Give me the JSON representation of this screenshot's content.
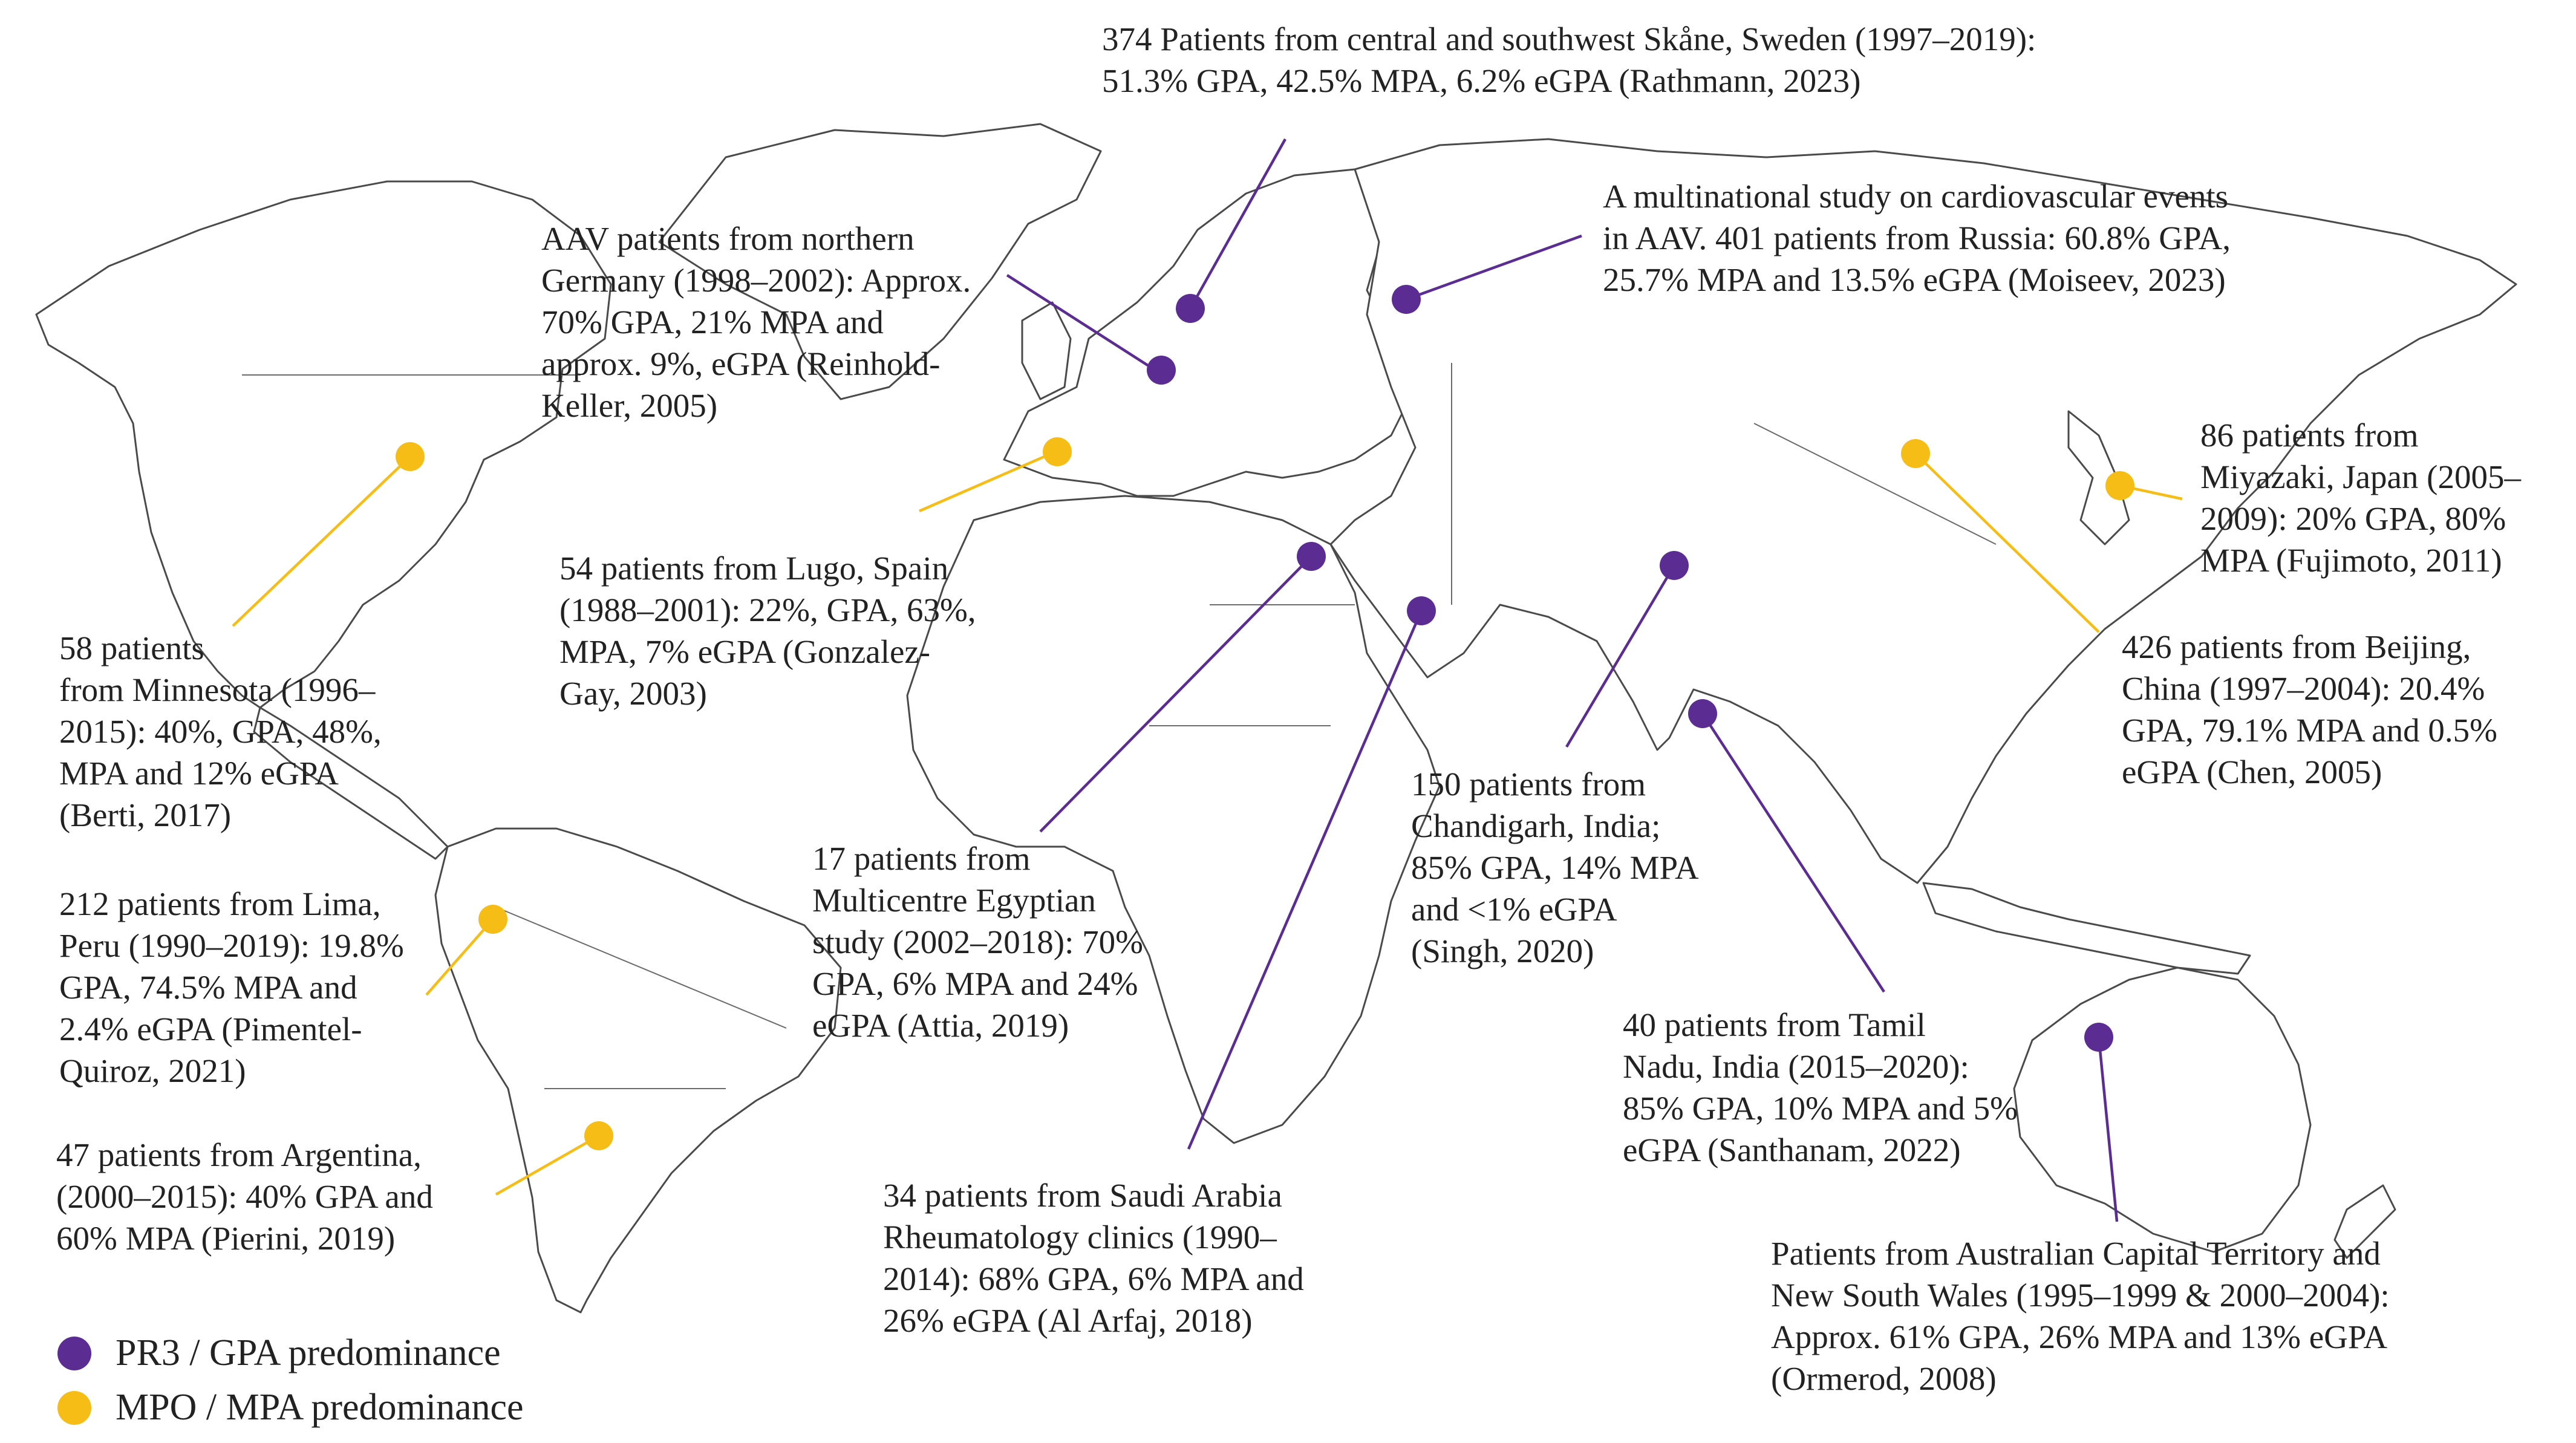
{
  "colors": {
    "gpa": "#5b2c91",
    "mpa": "#f6bd16"
  },
  "legend": {
    "gpa_label": "PR3 / GPA predominance",
    "mpa_label": "MPO / MPA predominance"
  },
  "annotations": {
    "sweden": [
      "374 Patients from central and southwest Skåne, Sweden  (1997–2019):",
      "51.3% GPA,  42.5% MPA,  6.2% eGPA (Rathmann, 2023)"
    ],
    "russia": [
      "A multinational study on cardiovascular events",
      "in AAV. 401 patients from Russia: 60.8% GPA,",
      "25.7% MPA and 13.5% eGPA (Moiseev,  2023)"
    ],
    "germany": [
      "AAV patients from northern",
      "Germany (1998–2002): Approx.",
      "70% GPA, 21% MPA and",
      "approx. 9%, eGPA (Reinhold-",
      "Keller, 2005)"
    ],
    "japan": [
      "86 patients from",
      "Miyazaki, Japan (2005–",
      "2009): 20% GPA, 80%",
      "MPA (Fujimoto, 2011)"
    ],
    "spain": [
      "54 patients from Lugo, Spain",
      "(1988–2001): 22%, GPA, 63%,",
      "MPA, 7% eGPA (Gonzalez-",
      "Gay, 2003)"
    ],
    "china": [
      "426 patients from Beijing,",
      "China (1997–2004): 20.4%",
      "GPA, 79.1% MPA and 0.5%",
      "eGPA (Chen, 2005)"
    ],
    "minnesota": [
      "58 patients",
      "from Minnesota (1996–",
      "2015): 40%, GPA, 48%,",
      "MPA and 12% eGPA",
      "(Berti, 2017)"
    ],
    "chandigarh": [
      "150 patients from",
      "Chandigarh, India;",
      "85% GPA, 14% MPA",
      "and <1% eGPA",
      "(Singh, 2020)"
    ],
    "egypt": [
      "17 patients from",
      "Multicentre Egyptian",
      "study (2002–2018): 70%",
      "GPA, 6% MPA and 24%",
      "eGPA (Attia, 2019)"
    ],
    "peru": [
      "212 patients from Lima,",
      "Peru  (1990–2019): 19.8%",
      "GPA, 74.5% MPA and",
      "2.4% eGPA (Pimentel-",
      "Quiroz, 2021)"
    ],
    "tamil": [
      "40 patients from Tamil",
      "Nadu, India (2015–2020):",
      "85% GPA, 10% MPA and 5%",
      "eGPA (Santhanam, 2022)"
    ],
    "argentina": [
      "47 patients from Argentina,",
      "(2000–2015): 40% GPA and",
      "60% MPA (Pierini, 2019)"
    ],
    "saudi": [
      "34 patients from Saudi Arabia",
      "Rheumatology  clinics (1990–",
      "2014): 68% GPA, 6% MPA and",
      "26% eGPA (Al Arfaj, 2018)"
    ],
    "australia": [
      "Patients from Australian Capital Territory and",
      "New South Wales (1995–1999 & 2000–2004):",
      "Approx. 61% GPA, 26% MPA and 13% eGPA",
      "(Ormerod, 2008)"
    ]
  },
  "markers": [
    {
      "id": "sweden",
      "type": "gpa"
    },
    {
      "id": "germany",
      "type": "gpa"
    },
    {
      "id": "russia",
      "type": "gpa"
    },
    {
      "id": "egypt",
      "type": "gpa"
    },
    {
      "id": "saudi",
      "type": "gpa"
    },
    {
      "id": "chandigarh",
      "type": "gpa"
    },
    {
      "id": "tamil",
      "type": "gpa"
    },
    {
      "id": "australia",
      "type": "gpa"
    },
    {
      "id": "minnesota",
      "type": "mpa"
    },
    {
      "id": "spain",
      "type": "mpa"
    },
    {
      "id": "china",
      "type": "mpa"
    },
    {
      "id": "japan",
      "type": "mpa"
    },
    {
      "id": "peru",
      "type": "mpa"
    },
    {
      "id": "argentina",
      "type": "mpa"
    }
  ]
}
